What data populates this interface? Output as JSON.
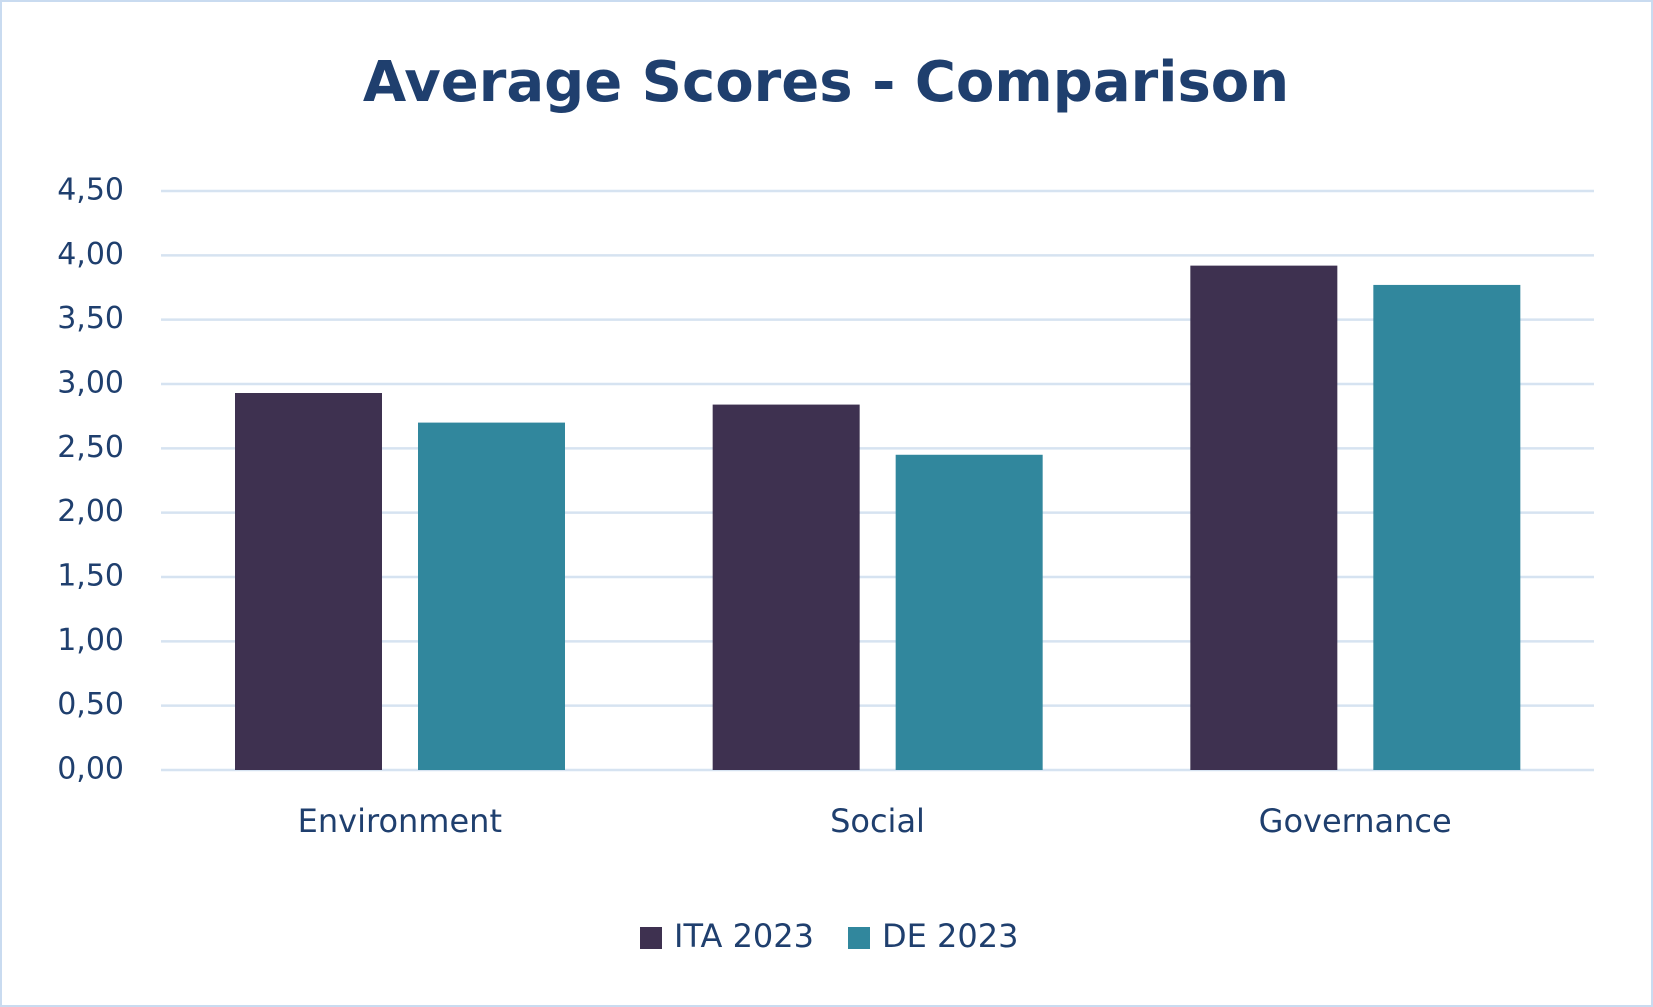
{
  "chart_data": {
    "type": "bar",
    "title": "Average Scores - Comparison",
    "categories": [
      "Environment",
      "Social",
      "Governance"
    ],
    "series": [
      {
        "name": "ITA 2023",
        "color": "#3e3150",
        "values": [
          2.93,
          2.84,
          3.92
        ]
      },
      {
        "name": "DE 2023",
        "color": "#31879d",
        "values": [
          2.7,
          2.45,
          3.77
        ]
      }
    ],
    "ylim": [
      0,
      4.5
    ],
    "yticks": [
      {
        "value": 0,
        "label": "0,00"
      },
      {
        "value": 0.5,
        "label": "0,50"
      },
      {
        "value": 1,
        "label": "1,00"
      },
      {
        "value": 1.5,
        "label": "1,50"
      },
      {
        "value": 2,
        "label": "2,00"
      },
      {
        "value": 2.5,
        "label": "2,50"
      },
      {
        "value": 3,
        "label": "3,00"
      },
      {
        "value": 3.5,
        "label": "3,50"
      },
      {
        "value": 4,
        "label": "4,00"
      },
      {
        "value": 4.5,
        "label": "4,50"
      }
    ],
    "grid": true,
    "legend": "bottom"
  }
}
